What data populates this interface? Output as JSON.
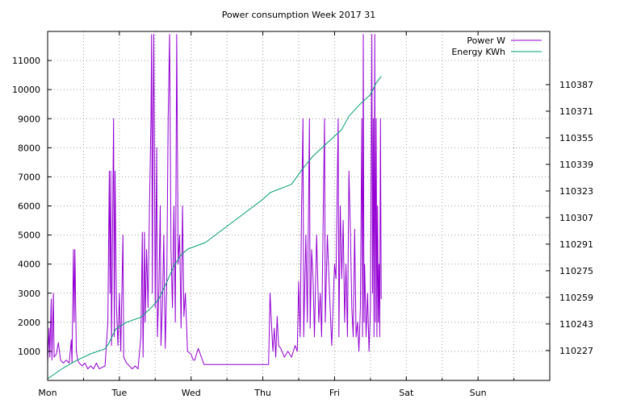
{
  "chart_data": {
    "type": "line",
    "title": "Power consumption Week 2017 31",
    "x_ticks": [
      "Mon",
      "Tue",
      "Wed",
      "Thu",
      "Fri",
      "Sat",
      "Sun"
    ],
    "xlim_days": [
      0,
      7
    ],
    "y_left": {
      "ticks": [
        1000,
        2000,
        3000,
        4000,
        5000,
        6000,
        7000,
        8000,
        9000,
        10000,
        11000
      ],
      "ylim": [
        0,
        12000
      ]
    },
    "y_right": {
      "ticks": [
        110227,
        110243,
        110259,
        110275,
        110291,
        110307,
        110323,
        110339,
        110355,
        110371,
        110387
      ],
      "ylim": [
        110209,
        110419
      ]
    },
    "grid": true,
    "legend_position": "top-right",
    "series": [
      {
        "name": "Power W",
        "axis": "left",
        "color": "#9400d3",
        "points": [
          [
            0.0,
            600
          ],
          [
            0.02,
            1800
          ],
          [
            0.03,
            800
          ],
          [
            0.05,
            2800
          ],
          [
            0.06,
            700
          ],
          [
            0.08,
            3000
          ],
          [
            0.09,
            800
          ],
          [
            0.12,
            900
          ],
          [
            0.15,
            1300
          ],
          [
            0.18,
            700
          ],
          [
            0.22,
            600
          ],
          [
            0.26,
            700
          ],
          [
            0.3,
            600
          ],
          [
            0.33,
            1400
          ],
          [
            0.34,
            600
          ],
          [
            0.36,
            4500
          ],
          [
            0.37,
            2000
          ],
          [
            0.38,
            4500
          ],
          [
            0.4,
            1000
          ],
          [
            0.42,
            700
          ],
          [
            0.44,
            600
          ],
          [
            0.48,
            500
          ],
          [
            0.52,
            600
          ],
          [
            0.56,
            400
          ],
          [
            0.6,
            500
          ],
          [
            0.64,
            400
          ],
          [
            0.68,
            600
          ],
          [
            0.72,
            400
          ],
          [
            0.8,
            500
          ],
          [
            0.84,
            2000
          ],
          [
            0.86,
            7200
          ],
          [
            0.87,
            3000
          ],
          [
            0.88,
            7200
          ],
          [
            0.89,
            1200
          ],
          [
            0.92,
            9000
          ],
          [
            0.93,
            1500
          ],
          [
            0.94,
            7200
          ],
          [
            0.96,
            2500
          ],
          [
            0.98,
            1200
          ],
          [
            1.0,
            3000
          ],
          [
            1.02,
            1000
          ],
          [
            1.05,
            5000
          ],
          [
            1.06,
            800
          ],
          [
            1.1,
            600
          ],
          [
            1.14,
            500
          ],
          [
            1.18,
            400
          ],
          [
            1.22,
            500
          ],
          [
            1.26,
            400
          ],
          [
            1.3,
            1500
          ],
          [
            1.32,
            5100
          ],
          [
            1.33,
            800
          ],
          [
            1.35,
            5100
          ],
          [
            1.36,
            2000
          ],
          [
            1.38,
            4500
          ],
          [
            1.4,
            2500
          ],
          [
            1.42,
            6000
          ],
          [
            1.44,
            9000
          ],
          [
            1.45,
            11900
          ],
          [
            1.46,
            3000
          ],
          [
            1.47,
            9000
          ],
          [
            1.48,
            11900
          ],
          [
            1.5,
            2500
          ],
          [
            1.52,
            8000
          ],
          [
            1.53,
            1500
          ],
          [
            1.55,
            3000
          ],
          [
            1.57,
            6000
          ],
          [
            1.58,
            1200
          ],
          [
            1.6,
            2600
          ],
          [
            1.62,
            5000
          ],
          [
            1.64,
            1100
          ],
          [
            1.66,
            3200
          ],
          [
            1.68,
            9000
          ],
          [
            1.7,
            11900
          ],
          [
            1.72,
            4500
          ],
          [
            1.74,
            2500
          ],
          [
            1.76,
            6000
          ],
          [
            1.78,
            2000
          ],
          [
            1.8,
            11900
          ],
          [
            1.82,
            4000
          ],
          [
            1.84,
            5000
          ],
          [
            1.86,
            1800
          ],
          [
            1.88,
            6000
          ],
          [
            1.9,
            2200
          ],
          [
            1.92,
            3000
          ],
          [
            1.95,
            1000
          ],
          [
            2.0,
            900
          ],
          [
            2.03,
            700
          ],
          [
            2.05,
            700
          ],
          [
            2.1,
            1100
          ],
          [
            2.18,
            550
          ],
          [
            3.05,
            550
          ],
          [
            3.08,
            550
          ],
          [
            3.1,
            3000
          ],
          [
            3.12,
            2000
          ],
          [
            3.14,
            1000
          ],
          [
            3.16,
            1800
          ],
          [
            3.18,
            800
          ],
          [
            3.2,
            2200
          ],
          [
            3.22,
            1200
          ],
          [
            3.25,
            1100
          ],
          [
            3.3,
            800
          ],
          [
            3.35,
            1000
          ],
          [
            3.4,
            800
          ],
          [
            3.45,
            1200
          ],
          [
            3.48,
            1000
          ],
          [
            3.5,
            3400
          ],
          [
            3.52,
            1500
          ],
          [
            3.54,
            6000
          ],
          [
            3.56,
            9000
          ],
          [
            3.57,
            1500
          ],
          [
            3.6,
            5000
          ],
          [
            3.62,
            2000
          ],
          [
            3.65,
            9000
          ],
          [
            3.66,
            1800
          ],
          [
            3.68,
            4500
          ],
          [
            3.7,
            3500
          ],
          [
            3.72,
            1500
          ],
          [
            3.75,
            5000
          ],
          [
            3.78,
            2000
          ],
          [
            3.8,
            3000
          ],
          [
            3.82,
            1500
          ],
          [
            3.86,
            9000
          ],
          [
            3.87,
            2000
          ],
          [
            3.9,
            5000
          ],
          [
            3.93,
            3000
          ],
          [
            3.96,
            1200
          ],
          [
            4.0,
            4000
          ],
          [
            4.02,
            3500
          ],
          [
            4.05,
            9000
          ],
          [
            4.06,
            1500
          ],
          [
            4.08,
            6000
          ],
          [
            4.1,
            3500
          ],
          [
            4.12,
            5500
          ],
          [
            4.14,
            2000
          ],
          [
            4.16,
            4000
          ],
          [
            4.18,
            1500
          ],
          [
            4.2,
            7200
          ],
          [
            4.22,
            5200
          ],
          [
            4.24,
            2500
          ],
          [
            4.26,
            1500
          ],
          [
            4.28,
            5200
          ],
          [
            4.3,
            1500
          ],
          [
            4.32,
            2000
          ],
          [
            4.34,
            1000
          ],
          [
            4.36,
            2500
          ],
          [
            4.38,
            9000
          ],
          [
            4.39,
            1500
          ],
          [
            4.4,
            11900
          ],
          [
            4.41,
            2000
          ],
          [
            4.42,
            4000
          ],
          [
            4.44,
            1500
          ],
          [
            4.46,
            3000
          ],
          [
            4.48,
            1000
          ],
          [
            4.5,
            2500
          ],
          [
            4.52,
            11900
          ],
          [
            4.53,
            3000
          ],
          [
            4.54,
            9000
          ],
          [
            4.55,
            1500
          ],
          [
            4.56,
            11900
          ],
          [
            4.57,
            2000
          ],
          [
            4.58,
            9000
          ],
          [
            4.59,
            1500
          ],
          [
            4.6,
            6000
          ],
          [
            4.61,
            2000
          ],
          [
            4.62,
            4000
          ],
          [
            4.63,
            1500
          ],
          [
            4.64,
            9000
          ],
          [
            4.65,
            2800
          ]
        ]
      },
      {
        "name": "Energy KWh",
        "axis": "right",
        "color": "#009e73",
        "points": [
          [
            0.0,
            110210
          ],
          [
            0.2,
            110216
          ],
          [
            0.4,
            110221
          ],
          [
            0.6,
            110225
          ],
          [
            0.8,
            110228
          ],
          [
            0.85,
            110231
          ],
          [
            0.95,
            110240
          ],
          [
            1.1,
            110244
          ],
          [
            1.3,
            110247
          ],
          [
            1.45,
            110253
          ],
          [
            1.55,
            110258
          ],
          [
            1.65,
            110267
          ],
          [
            1.75,
            110277
          ],
          [
            1.85,
            110284
          ],
          [
            1.95,
            110288
          ],
          [
            2.2,
            110292
          ],
          [
            2.6,
            110305
          ],
          [
            3.0,
            110318
          ],
          [
            3.1,
            110322
          ],
          [
            3.4,
            110327
          ],
          [
            3.55,
            110336
          ],
          [
            3.7,
            110344
          ],
          [
            3.9,
            110352
          ],
          [
            4.1,
            110360
          ],
          [
            4.2,
            110368
          ],
          [
            4.35,
            110375
          ],
          [
            4.5,
            110381
          ],
          [
            4.58,
            110388
          ],
          [
            4.65,
            110392
          ]
        ]
      }
    ]
  }
}
